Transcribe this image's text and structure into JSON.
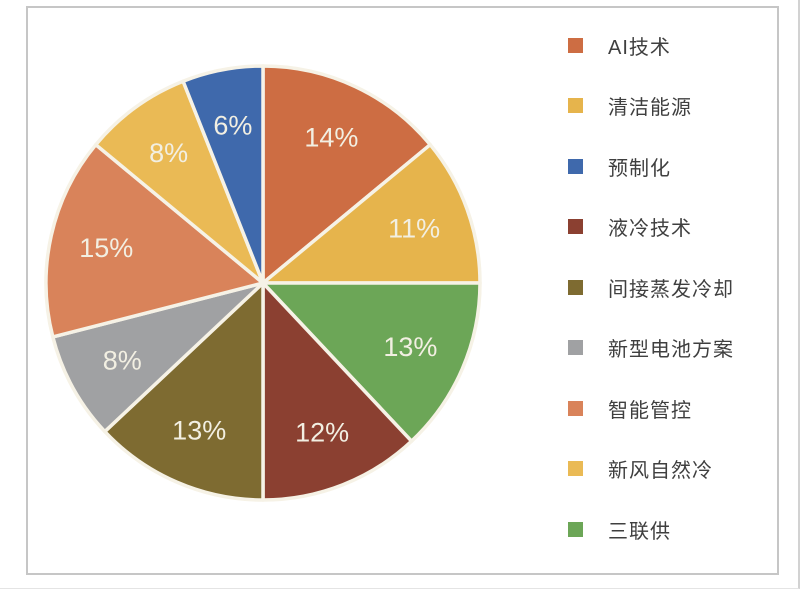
{
  "chart_data": {
    "type": "pie",
    "title": "",
    "data_labels": "percent",
    "legend_position": "right",
    "start_angle_deg": 0,
    "direction": "clockwise",
    "separator_color": "#f6f2e6",
    "label_color": "#f2efe2",
    "frame_border_color": "#c6c6c6",
    "slices": [
      {
        "label": "AI技术",
        "value": 14,
        "value_label": "14%",
        "color": "#cd6d43"
      },
      {
        "label": "清洁能源",
        "value": 11,
        "value_label": "11%",
        "color": "#e6b44c"
      },
      {
        "label": "三联供",
        "value": 13,
        "value_label": "13%",
        "color": "#6ca657"
      },
      {
        "label": "液冷技术",
        "value": 12,
        "value_label": "12%",
        "color": "#8b4031"
      },
      {
        "label": "间接蒸发冷却",
        "value": 13,
        "value_label": "13%",
        "color": "#7e6b31"
      },
      {
        "label": "新型电池方案",
        "value": 8,
        "value_label": "8%",
        "color": "#a0a1a3"
      },
      {
        "label": "智能管控",
        "value": 15,
        "value_label": "15%",
        "color": "#d9835a"
      },
      {
        "label": "新风自然冷",
        "value": 8,
        "value_label": "8%",
        "color": "#eaba55"
      },
      {
        "label": "预制化",
        "value": 6,
        "value_label": "6%",
        "color": "#3f69ac"
      }
    ],
    "legend": [
      {
        "label": "AI技术",
        "color": "#cd6d43"
      },
      {
        "label": "清洁能源",
        "color": "#e6b44c"
      },
      {
        "label": "预制化",
        "color": "#3f69ac"
      },
      {
        "label": "液冷技术",
        "color": "#8b4031"
      },
      {
        "label": "间接蒸发冷却",
        "color": "#7e6b31"
      },
      {
        "label": "新型电池方案",
        "color": "#a0a1a3"
      },
      {
        "label": "智能管控",
        "color": "#d9835a"
      },
      {
        "label": "新风自然冷",
        "color": "#eaba55"
      },
      {
        "label": "三联供",
        "color": "#6ca657"
      }
    ]
  }
}
